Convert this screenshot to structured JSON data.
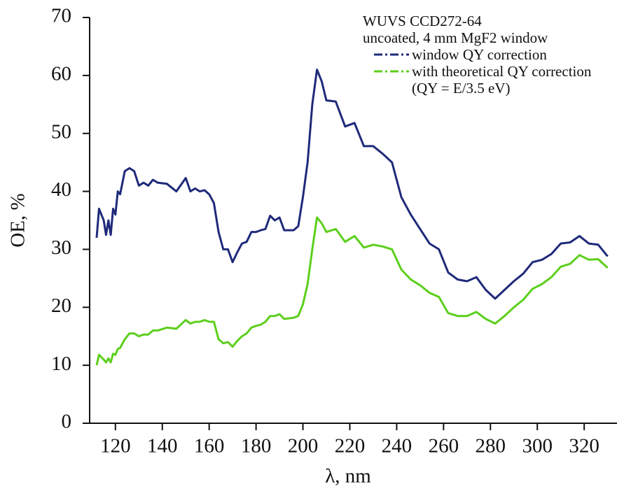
{
  "chart_data": {
    "type": "line",
    "x_label": "λ, nm",
    "y_label": "OE, %",
    "annotations": [
      "WUVS CCD272-64",
      "uncoated, 4 mm MgF2 window"
    ],
    "x": [
      112,
      113,
      115,
      116,
      117,
      118,
      119,
      120,
      121,
      122,
      124,
      126,
      128,
      130,
      132,
      134,
      136,
      138,
      142,
      146,
      150,
      152,
      154,
      156,
      158,
      160,
      162,
      164,
      166,
      168,
      170,
      172,
      174,
      176,
      178,
      180,
      182,
      184,
      186,
      188,
      190,
      192,
      196,
      198,
      200,
      202,
      204,
      206,
      208,
      210,
      214,
      218,
      222,
      226,
      230,
      234,
      238,
      242,
      246,
      250,
      254,
      258,
      262,
      266,
      270,
      274,
      278,
      282,
      286,
      290,
      294,
      298,
      302,
      306,
      310,
      314,
      318,
      322,
      326,
      330
    ],
    "series": [
      {
        "name": "window QY correction",
        "color": "#1f2a7a",
        "values": [
          32,
          37,
          35,
          32.5,
          35,
          32.5,
          37,
          36,
          40,
          39.5,
          43.5,
          44,
          43.5,
          41,
          41.5,
          41,
          42,
          41.5,
          41.3,
          40,
          42.3,
          40,
          40.5,
          40,
          40.2,
          39.5,
          38,
          33,
          30,
          30,
          27.8,
          29.5,
          31,
          31.3,
          33,
          33,
          33.3,
          33.5,
          35.8,
          35,
          35.5,
          33.3,
          33.3,
          34,
          39,
          45,
          55,
          61,
          59,
          55.7,
          55.5,
          51.2,
          51.8,
          47.8,
          47.8,
          46.5,
          45,
          39,
          36,
          33.5,
          31,
          30,
          26,
          24.8,
          24.5,
          25.2,
          23,
          21.5,
          23,
          24.5,
          25.8,
          27.8,
          28.2,
          29.2,
          31,
          31.2,
          32.3,
          31,
          30.8,
          28.8
        ]
      },
      {
        "name": "with theoretical QY correction (QY = E/3.5 eV)",
        "color": "#5ccf1c",
        "values": [
          10,
          11.8,
          11,
          10.5,
          11.2,
          10.5,
          12,
          11.8,
          12.8,
          13,
          14.5,
          15.5,
          15.5,
          15,
          15.3,
          15.3,
          16,
          16,
          16.5,
          16.3,
          17.8,
          17.2,
          17.5,
          17.5,
          17.8,
          17.5,
          17.5,
          14.5,
          13.8,
          14,
          13.2,
          14.2,
          15,
          15.5,
          16.5,
          16.8,
          17,
          17.5,
          18.5,
          18.5,
          18.8,
          18,
          18.2,
          18.5,
          20.5,
          24,
          30,
          35.5,
          34.5,
          33,
          33.5,
          31.3,
          32.3,
          30.3,
          30.8,
          30.5,
          30,
          26.5,
          24.8,
          23.8,
          22.5,
          21.8,
          19,
          18.5,
          18.5,
          19.2,
          18,
          17.2,
          18.5,
          20,
          21.3,
          23.2,
          24,
          25.2,
          27,
          27.5,
          29,
          28.2,
          28.3,
          26.8
        ]
      }
    ],
    "xlim": [
      109,
      334
    ],
    "xticks": [
      120,
      140,
      160,
      180,
      200,
      220,
      240,
      260,
      280,
      300,
      320
    ],
    "ylim": [
      0,
      70
    ],
    "yticks": [
      0,
      10,
      20,
      30,
      40,
      50,
      60,
      70
    ]
  }
}
